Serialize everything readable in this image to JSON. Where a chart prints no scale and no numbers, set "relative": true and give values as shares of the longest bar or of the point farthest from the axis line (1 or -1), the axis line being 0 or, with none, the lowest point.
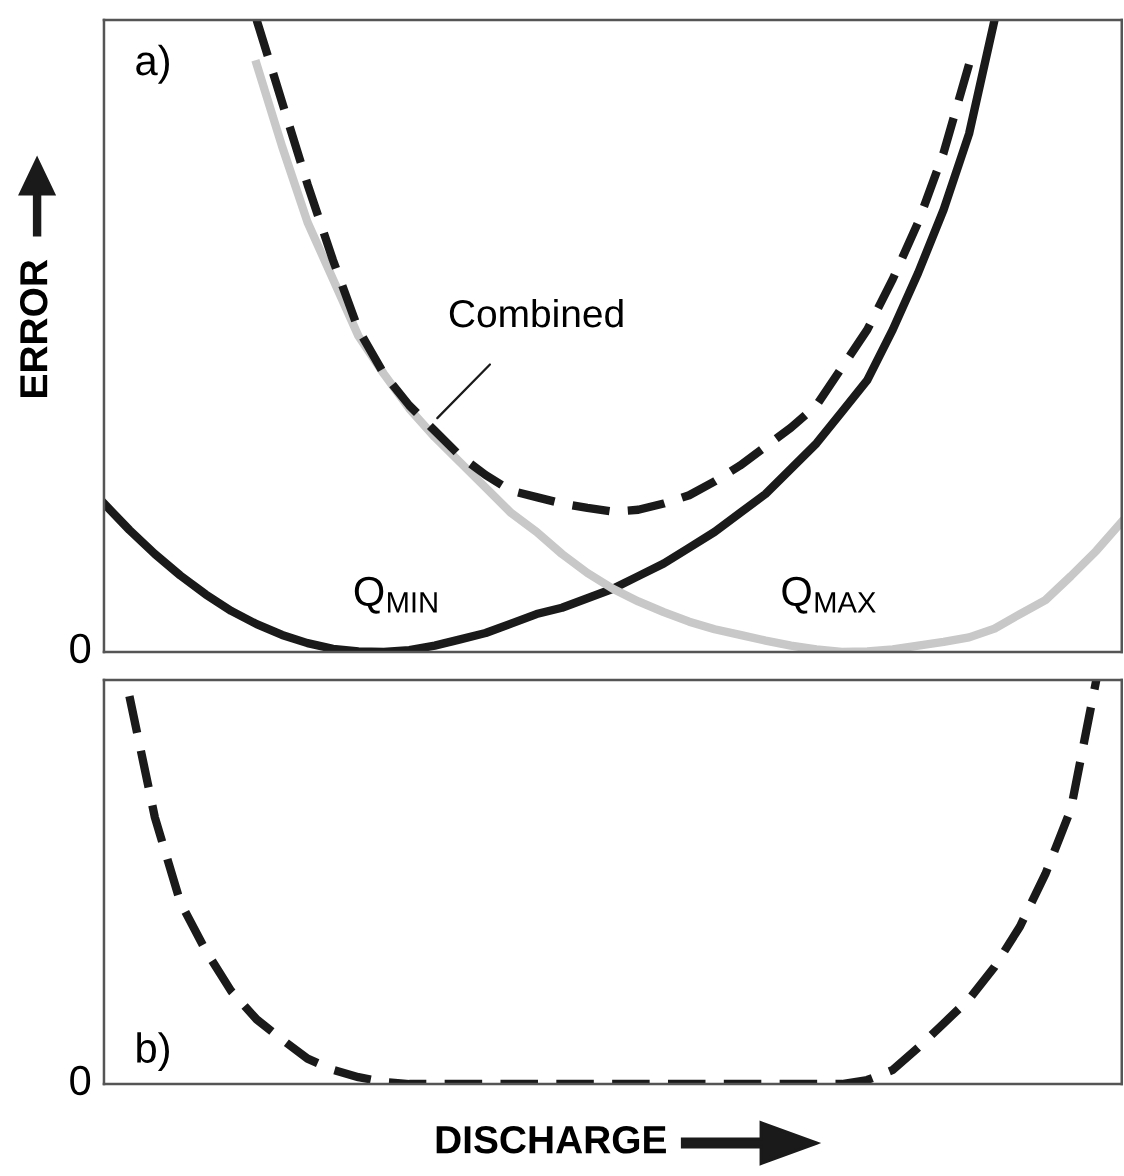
{
  "chart_data": [
    {
      "type": "line",
      "relative": true,
      "grid": false,
      "legend": false,
      "ylabel": "ERROR",
      "annotations": [
        "a)",
        "0"
      ],
      "categories": [
        null,
        null,
        null,
        null,
        null,
        null,
        null,
        null,
        null,
        null,
        null,
        null,
        null,
        null,
        null,
        null,
        null,
        null,
        null,
        null,
        null,
        null,
        null,
        null,
        null,
        null,
        null,
        null,
        null,
        null,
        null,
        null,
        null,
        null,
        null,
        null,
        null,
        null,
        null,
        null,
        null
      ],
      "series": [
        {
          "name": "Q$_{MIN}$",
          "color": "#1a1a1a",
          "line_style": "solid",
          "values": [
            0.235,
            0.193,
            0.155,
            0.121,
            0.091,
            0.065,
            0.044,
            0.027,
            0.014,
            0.005,
            0.001,
            0.0,
            0.003,
            0.01,
            0.02,
            0.03,
            0.045,
            0.06,
            0.07,
            0.085,
            0.1,
            0.12,
            0.14,
            0.165,
            0.19,
            0.22,
            0.25,
            0.29,
            0.33,
            0.38,
            0.43,
            0.51,
            0.6,
            0.7,
            0.82,
            1.0,
            null,
            null,
            null,
            null,
            null
          ]
        },
        {
          "name": "Q$_{MAX}$",
          "color": "#c8c8c8",
          "line_style": "solid",
          "values": [
            null,
            null,
            null,
            null,
            null,
            null,
            0.93,
            0.8,
            0.68,
            0.59,
            0.5,
            0.44,
            0.385,
            0.34,
            0.3,
            0.26,
            0.22,
            0.19,
            0.155,
            0.125,
            0.1,
            0.08,
            0.063,
            0.048,
            0.036,
            0.027,
            0.018,
            0.01,
            0.004,
            0.0,
            0.001,
            0.004,
            0.01,
            0.016,
            0.023,
            0.037,
            0.06,
            0.082,
            0.12,
            0.16,
            0.206
          ]
        },
        {
          "name": "Combined",
          "color": "#1a1a1a",
          "line_style": "dashed",
          "values": [
            null,
            null,
            null,
            null,
            null,
            null,
            1.0,
            0.87,
            0.74,
            0.62,
            0.51,
            0.44,
            0.39,
            0.35,
            0.31,
            0.28,
            0.255,
            0.245,
            0.235,
            0.228,
            0.222,
            0.225,
            0.235,
            0.248,
            0.27,
            0.295,
            0.325,
            0.355,
            0.39,
            0.45,
            0.51,
            0.59,
            0.68,
            0.79,
            0.93,
            null,
            null,
            null,
            null,
            null,
            null
          ]
        }
      ]
    },
    {
      "type": "line",
      "relative": true,
      "grid": false,
      "legend": false,
      "xlabel": "DISCHARGE",
      "annotations": [
        "b)",
        "0"
      ],
      "categories": [
        null,
        null,
        null,
        null,
        null,
        null,
        null,
        null,
        null,
        null,
        null,
        null,
        null,
        null,
        null,
        null,
        null,
        null,
        null,
        null,
        null,
        null,
        null,
        null,
        null,
        null,
        null,
        null,
        null,
        null,
        null,
        null,
        null,
        null,
        null,
        null,
        null,
        null,
        null,
        null,
        null
      ],
      "series": [
        {
          "color": "#1a1a1a",
          "line_style": "dashed",
          "values": [
            null,
            0.96,
            0.66,
            0.45,
            0.33,
            0.23,
            0.16,
            0.11,
            0.063,
            0.035,
            0.017,
            0.005,
            0.0,
            0.0,
            0.0,
            0.0,
            0.0,
            0.0,
            0.0,
            0.0,
            0.0,
            0.0,
            0.0,
            0.0,
            0.0,
            0.0,
            0.0,
            0.0,
            0.0,
            0.0,
            0.01,
            0.035,
            0.09,
            0.15,
            0.21,
            0.29,
            0.39,
            0.52,
            0.68,
            1.0,
            null
          ]
        }
      ]
    }
  ]
}
